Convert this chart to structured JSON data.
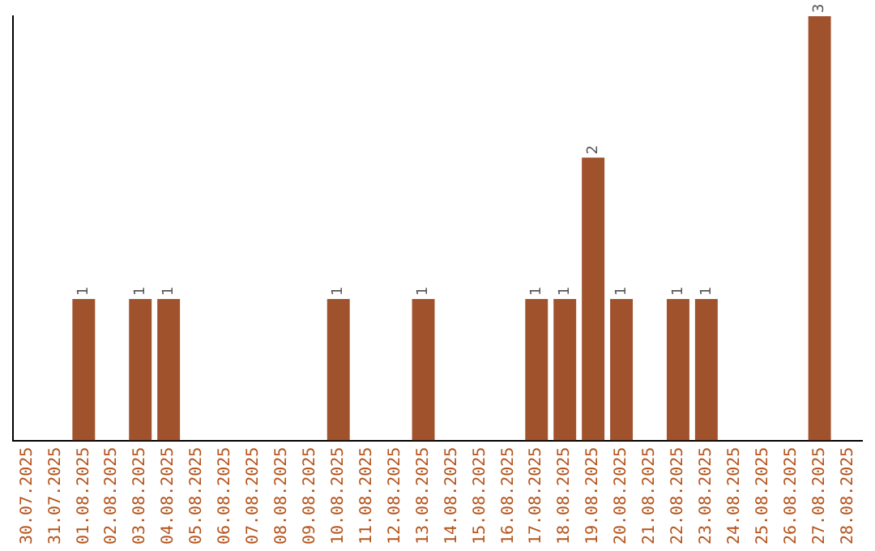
{
  "chart_data": {
    "type": "bar",
    "categories": [
      "30.07.2025",
      "31.07.2025",
      "01.08.2025",
      "02.08.2025",
      "03.08.2025",
      "04.08.2025",
      "05.08.2025",
      "06.08.2025",
      "07.08.2025",
      "08.08.2025",
      "09.08.2025",
      "10.08.2025",
      "11.08.2025",
      "12.08.2025",
      "13.08.2025",
      "14.08.2025",
      "15.08.2025",
      "16.08.2025",
      "17.08.2025",
      "18.08.2025",
      "19.08.2025",
      "20.08.2025",
      "21.08.2025",
      "22.08.2025",
      "23.08.2025",
      "24.08.2025",
      "25.08.2025",
      "26.08.2025",
      "27.08.2025",
      "28.08.2025"
    ],
    "values": [
      0,
      0,
      1,
      0,
      1,
      1,
      0,
      0,
      0,
      0,
      0,
      1,
      0,
      0,
      1,
      0,
      0,
      0,
      1,
      1,
      2,
      1,
      0,
      1,
      1,
      0,
      0,
      0,
      3,
      0
    ],
    "value_labels": [
      null,
      null,
      "1",
      null,
      "1",
      "1",
      null,
      null,
      null,
      null,
      null,
      "1",
      null,
      null,
      "1",
      null,
      null,
      null,
      "1",
      "1",
      "2",
      "1",
      null,
      "1",
      "1",
      null,
      null,
      null,
      "3",
      null
    ],
    "color": "#a0522d",
    "tick_labels": "x",
    "grid": false,
    "legend": false
  }
}
